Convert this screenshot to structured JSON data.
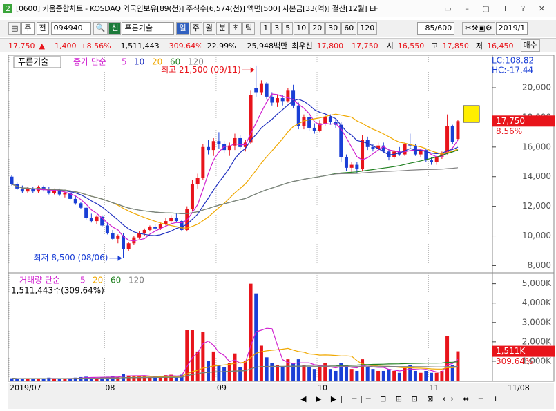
{
  "window": {
    "icon": "2",
    "title": "[0600] 키움종합차트 - KOSDAQ 외국인보유[89(천)] 주식수[6,574(천)] 액면[500] 자본금[33(억)] 결산[12월] EF"
  },
  "toolbar": {
    "period_type": "주",
    "prev": "전",
    "code": "094940",
    "new": "신",
    "name": "푸른기술",
    "units": [
      "일",
      "주",
      "월",
      "분",
      "초",
      "틱"
    ],
    "intervals": [
      "1",
      "3",
      "5",
      "10",
      "20",
      "30",
      "60",
      "120"
    ],
    "count": "85/600",
    "date": "2019/1"
  },
  "quote": {
    "price": "17,750",
    "arrow": "▲",
    "change": "1,400",
    "rate": "+8.56%",
    "volume": "1,511,443",
    "vol_rate": "309.64%",
    "turnover": "22.99%",
    "amount": "25,948백만",
    "best_label": "최우선",
    "ask": "17,800",
    "bid": "17,750",
    "open_label": "시",
    "open": "16,550",
    "high_label": "고",
    "high": "17,850",
    "low_label": "저",
    "low": "16,450",
    "button": "매수"
  },
  "chart_data": [
    {
      "type": "candlestick",
      "legend_name": "푸른기술",
      "ma_label": "종가 단순",
      "ma": [
        {
          "period": 5,
          "color": "#d020d0"
        },
        {
          "period": 10,
          "color": "#2030c0"
        },
        {
          "period": 20,
          "color": "#f0a800"
        },
        {
          "period": 60,
          "color": "#208020"
        },
        {
          "period": 120,
          "color": "#808080"
        }
      ],
      "open": [
        14000,
        13500,
        13200,
        13000,
        13200,
        13000,
        13300,
        13100,
        12900,
        13100,
        12800,
        12900,
        12500,
        12200,
        11900,
        11200,
        11000,
        11300,
        10700,
        10200,
        9800,
        10000,
        9100,
        9500,
        9900,
        10200,
        10400,
        10600,
        10500,
        10800,
        11000,
        11200,
        11000,
        10400,
        11800,
        13500,
        13900,
        16000,
        15800,
        16400,
        16200,
        15800,
        16100,
        16600,
        16000,
        16300,
        20000,
        19700,
        20300,
        19400,
        19000,
        19300,
        19100,
        19800,
        18800,
        17400,
        18000,
        17300,
        17100,
        17600,
        18000,
        17700,
        17500,
        15300,
        14600,
        14800,
        14500,
        16500,
        16000,
        15900,
        16100,
        15700,
        15300,
        15700,
        15500,
        16200,
        16100,
        15500,
        15800,
        15100,
        15000,
        15300,
        15600,
        17400,
        16550
      ],
      "high": [
        14100,
        13600,
        13400,
        13300,
        13300,
        13400,
        13400,
        13300,
        13200,
        13200,
        13000,
        13000,
        12700,
        12300,
        12000,
        11500,
        11400,
        11400,
        10900,
        10400,
        10100,
        10200,
        9600,
        10000,
        10300,
        10500,
        10700,
        10800,
        10900,
        11200,
        11400,
        11500,
        11100,
        12000,
        13800,
        14200,
        16200,
        16500,
        16600,
        17000,
        16400,
        16300,
        16900,
        16800,
        16500,
        19800,
        21500,
        20500,
        20400,
        19700,
        19500,
        19500,
        20000,
        20200,
        19000,
        18200,
        18300,
        17600,
        17800,
        18200,
        18200,
        17900,
        17700,
        15500,
        15000,
        15000,
        16800,
        16700,
        16200,
        16300,
        16300,
        15900,
        15800,
        16000,
        16300,
        16900,
        16200,
        15900,
        15900,
        15300,
        15400,
        15700,
        18200,
        17500,
        17850
      ],
      "low": [
        13400,
        13100,
        12900,
        12900,
        12900,
        12900,
        13000,
        12800,
        12800,
        12700,
        12600,
        12400,
        12100,
        11800,
        11100,
        10900,
        10800,
        10600,
        10100,
        9700,
        9500,
        8500,
        9000,
        9400,
        9800,
        10000,
        10300,
        10300,
        10400,
        10700,
        10800,
        10900,
        10300,
        10300,
        11700,
        13200,
        13800,
        15500,
        15400,
        15900,
        15600,
        15400,
        15800,
        15900,
        15700,
        16200,
        19400,
        19500,
        19200,
        18800,
        18700,
        18800,
        19000,
        18600,
        17200,
        17200,
        17100,
        16900,
        17000,
        17400,
        17500,
        17300,
        15000,
        14400,
        14300,
        14200,
        14400,
        15800,
        15700,
        15700,
        15600,
        15100,
        15200,
        15400,
        15400,
        15900,
        15400,
        15300,
        15000,
        14800,
        14800,
        15200,
        15500,
        16200,
        16450
      ],
      "close": [
        13500,
        13200,
        13000,
        13200,
        13000,
        13300,
        13100,
        12900,
        13100,
        12800,
        12900,
        12500,
        12200,
        11900,
        11200,
        11000,
        11300,
        10700,
        10200,
        9800,
        10000,
        9100,
        9500,
        9900,
        10200,
        10400,
        10600,
        10500,
        10800,
        11000,
        11200,
        11000,
        10400,
        11800,
        13500,
        13900,
        16000,
        15800,
        16400,
        16200,
        15800,
        16100,
        16600,
        16000,
        16300,
        19500,
        19700,
        20300,
        19400,
        19000,
        19300,
        19100,
        19800,
        18800,
        17400,
        18000,
        17300,
        17100,
        17600,
        18000,
        17700,
        17500,
        15300,
        14600,
        14800,
        14500,
        16500,
        16000,
        15900,
        16100,
        15700,
        15300,
        15700,
        15500,
        16200,
        16100,
        15500,
        15800,
        15100,
        15000,
        15300,
        15600,
        17400,
        16350,
        17750
      ],
      "ylim": [
        7600,
        22100
      ],
      "yticks": [
        {
          "value": 8000,
          "label": "8,000"
        },
        {
          "value": 10000,
          "label": "10,000"
        },
        {
          "value": 12000,
          "label": "12,000"
        },
        {
          "value": 14000,
          "label": "14,000"
        },
        {
          "value": 16000,
          "label": "16,000"
        },
        {
          "value": 18000,
          "label": "18,000"
        },
        {
          "value": 20000,
          "label": "20,000"
        }
      ],
      "up_color": "#e8141b",
      "down_color": "#1a3fd6",
      "annotations": [
        {
          "text": "최고 21,500 (09/11)",
          "color": "#e8141b"
        },
        {
          "text": "최저 8,500 (08/06)",
          "color": "#1a3fd6"
        }
      ],
      "last_label": "17,750",
      "last_rate": "8.56%",
      "lc": "LC:108.82",
      "hc": "HC:-17.44"
    },
    {
      "type": "bar",
      "ma_label": "거래량 단순",
      "ma": [
        {
          "period": 5,
          "color": "#d020d0"
        },
        {
          "period": 20,
          "color": "#f0a800"
        },
        {
          "period": 60,
          "color": "#208020"
        },
        {
          "period": 120,
          "color": "#808080"
        }
      ],
      "summary": "1,511,443주(309.64%)",
      "categories": [
        "2019/07",
        null,
        null,
        null,
        null,
        null,
        null,
        null,
        null,
        null,
        null,
        null,
        null,
        null,
        null,
        null,
        null,
        null,
        "08",
        null,
        null,
        null,
        null,
        null,
        null,
        null,
        null,
        null,
        null,
        null,
        null,
        null,
        null,
        null,
        null,
        null,
        null,
        null,
        null,
        "09",
        null,
        null,
        null,
        null,
        null,
        null,
        null,
        null,
        null,
        null,
        null,
        null,
        null,
        null,
        null,
        null,
        null,
        null,
        "10",
        null,
        null,
        null,
        null,
        null,
        null,
        null,
        null,
        null,
        null,
        null,
        null,
        null,
        null,
        null,
        null,
        null,
        null,
        null,
        null,
        "11",
        null,
        null,
        null,
        null,
        null
      ],
      "values": [
        120,
        90,
        100,
        80,
        110,
        90,
        100,
        150,
        80,
        90,
        100,
        120,
        150,
        180,
        200,
        160,
        140,
        180,
        200,
        220,
        190,
        350,
        260,
        220,
        230,
        240,
        200,
        210,
        250,
        280,
        300,
        150,
        300,
        2600,
        2600,
        1500,
        2500,
        1000,
        1500,
        800,
        700,
        900,
        1400,
        700,
        1000,
        5000,
        4500,
        1800,
        1200,
        900,
        800,
        700,
        1100,
        900,
        1100,
        800,
        700,
        600,
        700,
        900,
        600,
        500,
        900,
        800,
        600,
        500,
        1100,
        700,
        600,
        500,
        500,
        600,
        500,
        400,
        700,
        800,
        500,
        400,
        500,
        400,
        400,
        500,
        2300,
        800,
        1511.443
      ],
      "ylim": [
        0,
        5450
      ],
      "yticks": [
        {
          "value": 1000,
          "label": "1,000K"
        },
        {
          "value": 2000,
          "label": "2,000K"
        },
        {
          "value": 3000,
          "label": "3,000K"
        },
        {
          "value": 4000,
          "label": "4,000K"
        },
        {
          "value": 5000,
          "label": "5,000K"
        }
      ],
      "last_label": "1,511K",
      "last_rate": "309.64%",
      "last_date": "11/08"
    }
  ]
}
